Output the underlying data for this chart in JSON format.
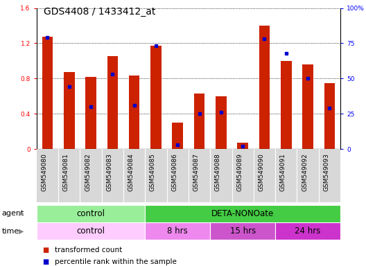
{
  "title": "GDS4408 / 1433412_at",
  "samples": [
    "GSM549080",
    "GSM549081",
    "GSM549082",
    "GSM549083",
    "GSM549084",
    "GSM549085",
    "GSM549086",
    "GSM549087",
    "GSM549088",
    "GSM549089",
    "GSM549090",
    "GSM549091",
    "GSM549092",
    "GSM549093"
  ],
  "red_values": [
    1.27,
    0.87,
    0.82,
    1.05,
    0.83,
    1.17,
    0.3,
    0.63,
    0.6,
    0.07,
    1.4,
    1.0,
    0.96,
    0.75
  ],
  "blue_values": [
    79,
    44,
    30,
    53,
    31,
    73,
    3,
    25,
    26,
    2,
    78,
    68,
    50,
    29
  ],
  "ylim_left": [
    0,
    1.6
  ],
  "ylim_right": [
    0,
    100
  ],
  "yticks_left": [
    0,
    0.4,
    0.8,
    1.2,
    1.6
  ],
  "yticks_right": [
    0,
    25,
    50,
    75,
    100
  ],
  "ytick_labels_left": [
    "0",
    "0.4",
    "0.8",
    "1.2",
    "1.6"
  ],
  "ytick_labels_right": [
    "0",
    "25",
    "50",
    "75",
    "100%"
  ],
  "bar_color": "#cc2200",
  "marker_color": "#0000cc",
  "background_color": "#ffffff",
  "grid_color": "#000000",
  "agent_groups": [
    {
      "label": "control",
      "start": 0,
      "end": 5,
      "color": "#99ee99"
    },
    {
      "label": "DETA-NONOate",
      "start": 5,
      "end": 14,
      "color": "#44cc44"
    }
  ],
  "time_groups": [
    {
      "label": "control",
      "start": 0,
      "end": 5,
      "color": "#ffccff"
    },
    {
      "label": "8 hrs",
      "start": 5,
      "end": 8,
      "color": "#ee88ee"
    },
    {
      "label": "15 hrs",
      "start": 8,
      "end": 11,
      "color": "#cc55cc"
    },
    {
      "label": "24 hrs",
      "start": 11,
      "end": 14,
      "color": "#cc33cc"
    }
  ],
  "legend_items": [
    {
      "label": "transformed count",
      "color": "#cc2200"
    },
    {
      "label": "percentile rank within the sample",
      "color": "#0000cc"
    }
  ],
  "bar_width": 0.5,
  "title_fontsize": 10,
  "tick_fontsize": 6.5,
  "label_fontsize": 8,
  "group_fontsize": 8.5,
  "legend_fontsize": 7.5
}
